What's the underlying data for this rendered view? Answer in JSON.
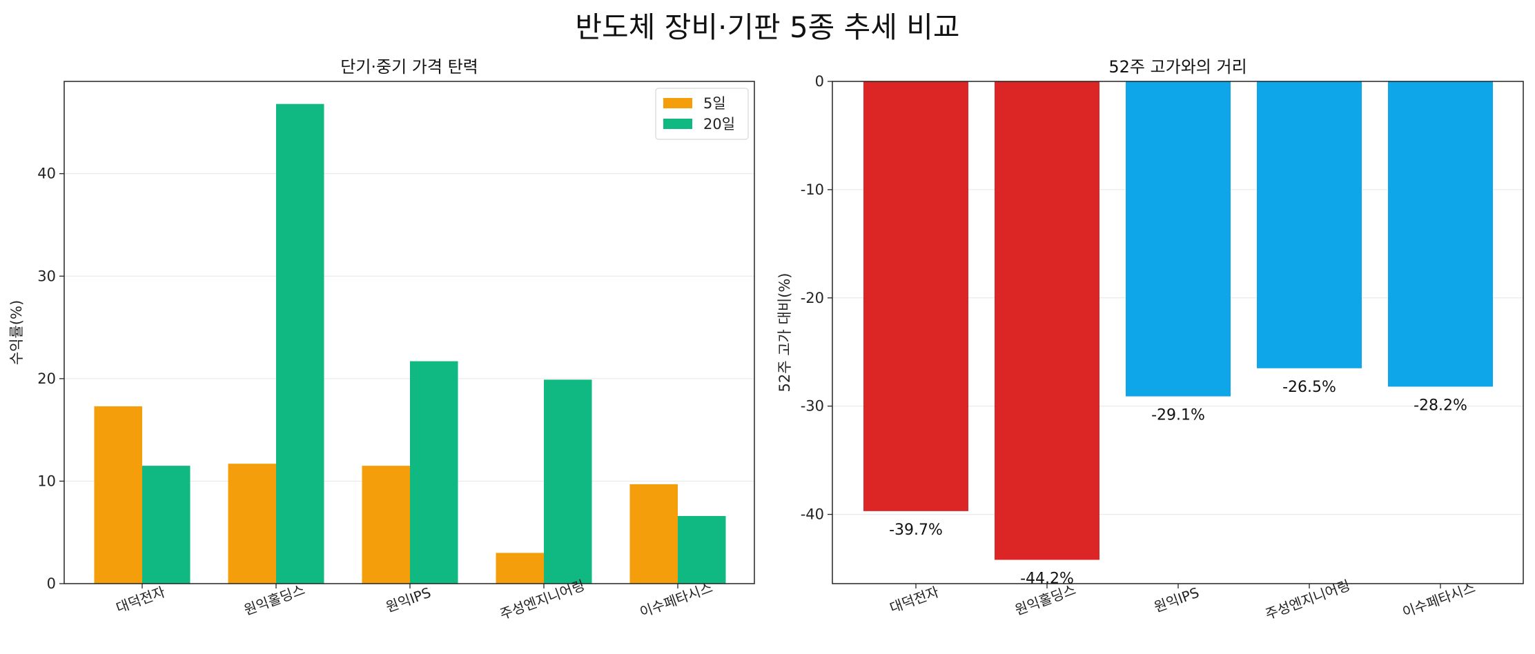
{
  "suptitle": "반도체 장비·기판 5종 추세 비교",
  "chart_data": [
    {
      "type": "bar",
      "title": "단기·중기 가격 탄력",
      "xlabel": "",
      "ylabel": "수익률(%)",
      "ylim": [
        0,
        49
      ],
      "yticks": [
        0,
        10,
        20,
        30,
        40
      ],
      "grid": "y",
      "legend_position": "top-right",
      "categories": [
        "대덕전자",
        "원익홀딩스",
        "원익IPS",
        "주성엔지니어링",
        "이수페타시스"
      ],
      "series": [
        {
          "name": "5일",
          "color": "#f59e0b",
          "values": [
            17.3,
            11.7,
            11.5,
            3.0,
            9.7
          ]
        },
        {
          "name": "20일",
          "color": "#10b981",
          "values": [
            11.5,
            46.8,
            21.7,
            19.9,
            6.6
          ]
        }
      ]
    },
    {
      "type": "bar",
      "title": "52주 고가와의 거리",
      "xlabel": "",
      "ylabel": "52주 고가 대비(%)",
      "ylim": [
        -46.4,
        0
      ],
      "yticks": [
        0,
        -10,
        -20,
        -30,
        -40
      ],
      "grid": "y",
      "categories": [
        "대덕전자",
        "원익홀딩스",
        "원익IPS",
        "주성엔지니어링",
        "이수페타시스"
      ],
      "values": [
        -39.7,
        -44.2,
        -29.1,
        -26.5,
        -28.2
      ],
      "value_labels": [
        "-39.7%",
        "-44.2%",
        "-29.1%",
        "-26.5%",
        "-28.2%"
      ],
      "colors": [
        "#dc2626",
        "#dc2626",
        "#0ea5e9",
        "#0ea5e9",
        "#0ea5e9"
      ]
    }
  ]
}
